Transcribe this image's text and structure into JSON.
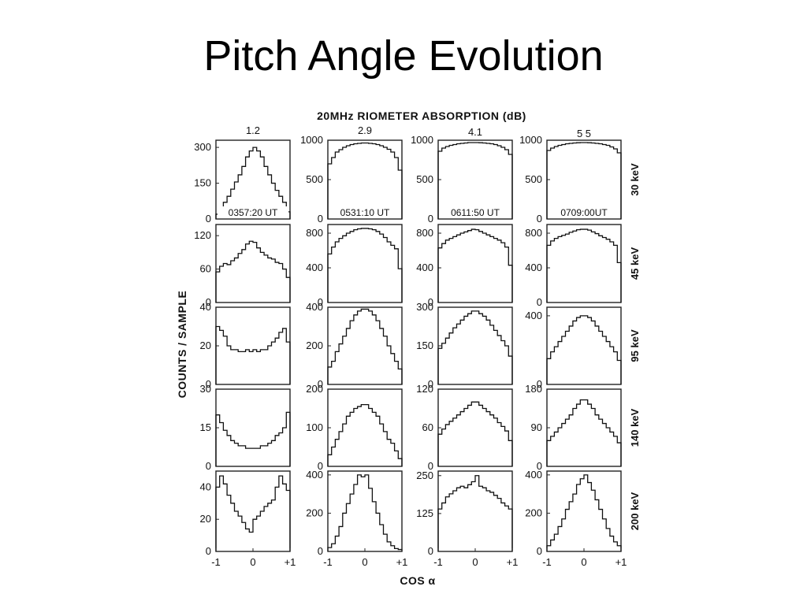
{
  "slide": {
    "title": "Pitch Angle Evolution"
  },
  "chart_data": {
    "type": "line",
    "title": "20MHz RIOMETER ABSORPTION (dB)",
    "ylabel": "COUNTS / SAMPLE",
    "xlabel": "COS α",
    "x_ticks": [
      "-1",
      "0",
      "+1"
    ],
    "columns": [
      {
        "absorption": "1.2",
        "time": "0357:20 UT"
      },
      {
        "absorption": "2.9",
        "time": "0531:10 UT"
      },
      {
        "absorption": "4.1",
        "time": "0611:50 UT"
      },
      {
        "absorption": "5 5",
        "time": "0709:00UT"
      }
    ],
    "rows": [
      {
        "energy": "30 keV",
        "y_ticks": [
          [
            "0",
            "150",
            "300"
          ],
          [
            "0",
            "500",
            "1000"
          ],
          [
            "0",
            "500",
            "1000"
          ],
          [
            "0",
            "500",
            "1000"
          ]
        ],
        "ylim": [
          [
            0,
            330
          ],
          [
            0,
            1000
          ],
          [
            0,
            1000
          ],
          [
            0,
            1000
          ]
        ]
      },
      {
        "energy": "45 keV",
        "y_ticks": [
          [
            "0",
            "60",
            "120"
          ],
          [
            "0",
            "400",
            "800"
          ],
          [
            "0",
            "400",
            "800"
          ],
          [
            "0",
            "400",
            "800"
          ]
        ],
        "ylim": [
          [
            0,
            140
          ],
          [
            0,
            900
          ],
          [
            0,
            900
          ],
          [
            0,
            900
          ]
        ]
      },
      {
        "energy": "95 keV",
        "y_ticks": [
          [
            "0",
            "20",
            "40"
          ],
          [
            "0",
            "200",
            "400"
          ],
          [
            "0",
            "150",
            "300"
          ],
          [
            "0",
            "400"
          ]
        ],
        "ylim": [
          [
            0,
            40
          ],
          [
            0,
            400
          ],
          [
            0,
            300
          ],
          [
            0,
            450
          ]
        ]
      },
      {
        "energy": "140 keV",
        "y_ticks": [
          [
            "0",
            "15",
            "30"
          ],
          [
            "0",
            "100",
            "200"
          ],
          [
            "0",
            "60",
            "120"
          ],
          [
            "0",
            "90",
            "180"
          ]
        ],
        "ylim": [
          [
            0,
            30
          ],
          [
            0,
            200
          ],
          [
            0,
            120
          ],
          [
            0,
            180
          ]
        ]
      },
      {
        "energy": "200 keV",
        "y_ticks": [
          [
            "0",
            "20",
            "40"
          ],
          [
            "0",
            "200",
            "400"
          ],
          [
            "0",
            "125",
            "250"
          ],
          [
            "0",
            "200",
            "400"
          ]
        ],
        "ylim": [
          [
            0,
            50
          ],
          [
            0,
            420
          ],
          [
            0,
            265
          ],
          [
            0,
            420
          ]
        ]
      }
    ],
    "x": [
      -0.95,
      -0.85,
      -0.75,
      -0.65,
      -0.55,
      -0.45,
      -0.35,
      -0.25,
      -0.15,
      -0.05,
      0.05,
      0.15,
      0.25,
      0.35,
      0.45,
      0.55,
      0.65,
      0.75,
      0.85,
      0.95
    ],
    "panels": [
      [
        [
          20,
          45,
          70,
          95,
          125,
          155,
          185,
          220,
          260,
          285,
          300,
          285,
          260,
          220,
          185,
          150,
          120,
          95,
          70,
          30
        ],
        [
          700,
          780,
          850,
          880,
          910,
          930,
          945,
          955,
          960,
          965,
          965,
          960,
          955,
          945,
          930,
          910,
          885,
          850,
          780,
          620
        ],
        [
          860,
          900,
          920,
          935,
          945,
          955,
          960,
          965,
          970,
          970,
          970,
          968,
          965,
          960,
          955,
          945,
          930,
          910,
          880,
          820
        ],
        [
          870,
          900,
          920,
          935,
          945,
          955,
          960,
          965,
          968,
          970,
          970,
          968,
          965,
          960,
          955,
          945,
          935,
          915,
          890,
          840
        ]
      ],
      [
        [
          55,
          65,
          70,
          68,
          75,
          80,
          88,
          95,
          105,
          110,
          108,
          98,
          90,
          85,
          80,
          78,
          72,
          70,
          60,
          45
        ],
        [
          560,
          640,
          700,
          740,
          770,
          800,
          820,
          840,
          850,
          855,
          855,
          850,
          840,
          820,
          790,
          750,
          700,
          660,
          620,
          390
        ],
        [
          630,
          680,
          720,
          740,
          760,
          780,
          800,
          815,
          830,
          845,
          840,
          820,
          800,
          780,
          760,
          740,
          720,
          690,
          640,
          430
        ],
        [
          660,
          710,
          740,
          760,
          775,
          790,
          810,
          825,
          840,
          845,
          845,
          835,
          815,
          795,
          770,
          750,
          730,
          700,
          660,
          460
        ]
      ],
      [
        [
          30,
          28,
          25,
          20,
          18,
          18,
          17,
          17,
          18,
          17,
          18,
          17,
          18,
          18,
          20,
          22,
          24,
          27,
          29,
          22
        ],
        [
          90,
          120,
          170,
          210,
          250,
          290,
          330,
          360,
          380,
          390,
          390,
          380,
          360,
          330,
          290,
          250,
          200,
          160,
          120,
          80
        ],
        [
          140,
          160,
          180,
          200,
          220,
          235,
          250,
          265,
          275,
          285,
          285,
          275,
          265,
          250,
          230,
          210,
          190,
          170,
          150,
          110
        ],
        [
          150,
          190,
          220,
          250,
          280,
          310,
          340,
          370,
          390,
          400,
          400,
          390,
          370,
          340,
          310,
          280,
          250,
          220,
          190,
          140
        ]
      ],
      [
        [
          20,
          17,
          14,
          12,
          10,
          9,
          8,
          8,
          7,
          7,
          7,
          7,
          8,
          8,
          9,
          10,
          12,
          13,
          15,
          21
        ],
        [
          30,
          50,
          70,
          90,
          110,
          130,
          140,
          150,
          155,
          160,
          160,
          150,
          140,
          130,
          110,
          90,
          70,
          60,
          40,
          20
        ],
        [
          50,
          58,
          65,
          70,
          75,
          80,
          85,
          90,
          95,
          100,
          100,
          95,
          90,
          85,
          80,
          75,
          68,
          62,
          55,
          40
        ],
        [
          60,
          70,
          80,
          90,
          100,
          110,
          120,
          135,
          145,
          155,
          155,
          145,
          135,
          120,
          110,
          100,
          90,
          80,
          70,
          55
        ]
      ],
      [
        [
          40,
          47,
          42,
          35,
          30,
          25,
          22,
          18,
          14,
          12,
          20,
          22,
          25,
          28,
          30,
          32,
          40,
          47,
          42,
          38
        ],
        [
          20,
          40,
          80,
          130,
          200,
          250,
          300,
          350,
          400,
          390,
          400,
          330,
          260,
          200,
          140,
          90,
          50,
          30,
          15,
          10
        ],
        [
          140,
          160,
          180,
          190,
          200,
          210,
          215,
          210,
          220,
          230,
          250,
          215,
          210,
          200,
          195,
          185,
          175,
          160,
          150,
          140
        ],
        [
          30,
          60,
          90,
          130,
          170,
          220,
          260,
          300,
          350,
          380,
          400,
          360,
          320,
          270,
          220,
          170,
          120,
          80,
          50,
          30
        ]
      ]
    ]
  }
}
